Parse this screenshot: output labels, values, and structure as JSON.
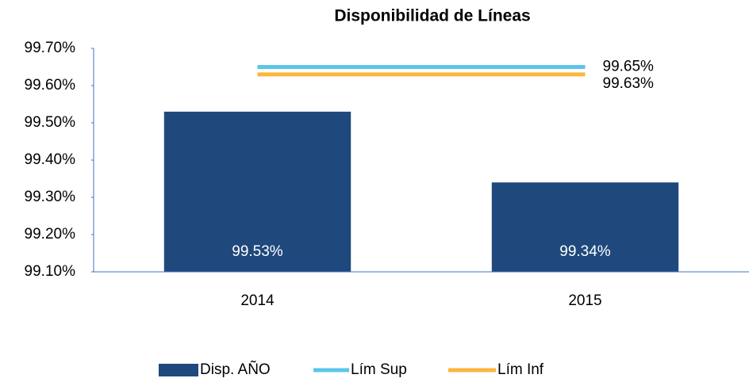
{
  "chart_data": {
    "type": "combo",
    "title": "Disponibilidad de Líneas",
    "categories": [
      "2014",
      "2015"
    ],
    "series": [
      {
        "name": "Disp. AÑO",
        "type": "bar",
        "color": "#1f497d",
        "values": [
          99.53,
          99.34
        ],
        "value_labels": [
          "99.53%",
          "99.34%"
        ]
      },
      {
        "name": "Lím Sup",
        "type": "line",
        "color": "#5bc6e8",
        "values": [
          99.65,
          99.65
        ],
        "value_labels": [
          null,
          "99.65%"
        ]
      },
      {
        "name": "Lím Inf",
        "type": "line",
        "color": "#fbb63f",
        "values": [
          99.63,
          99.63
        ],
        "value_labels": [
          null,
          "99.63%"
        ]
      }
    ],
    "ylim": [
      99.1,
      99.7
    ],
    "yticks": [
      {
        "value": 99.1,
        "label": "99.10%"
      },
      {
        "value": 99.2,
        "label": "99.20%"
      },
      {
        "value": 99.3,
        "label": "99.30%"
      },
      {
        "value": 99.4,
        "label": "99.40%"
      },
      {
        "value": 99.5,
        "label": "99.50%"
      },
      {
        "value": 99.6,
        "label": "99.60%"
      },
      {
        "value": 99.7,
        "label": "99.70%"
      }
    ],
    "legend": "bottom"
  }
}
